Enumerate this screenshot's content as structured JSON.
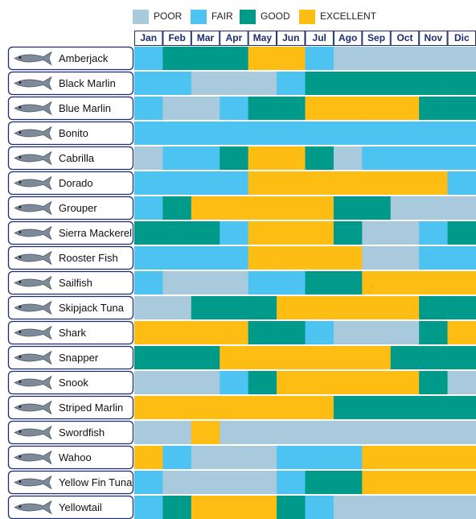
{
  "legend": [
    {
      "label": "POOR",
      "color": "#a9c9dc"
    },
    {
      "label": "FAIR",
      "color": "#4cc3f1"
    },
    {
      "label": "GOOD",
      "color": "#009a8b"
    },
    {
      "label": "EXCELLENT",
      "color": "#fdbd13"
    }
  ],
  "months": [
    "Jan",
    "Feb",
    "Mar",
    "Apr",
    "May",
    "Jun",
    "Jul",
    "Ago",
    "Sep",
    "Oct",
    "Nov",
    "Dic"
  ],
  "fish": [
    {
      "name": "Amberjack",
      "ratings": [
        1,
        2,
        2,
        2,
        3,
        3,
        1,
        0,
        0,
        0,
        0,
        0
      ]
    },
    {
      "name": "Black Marlin",
      "ratings": [
        1,
        1,
        0,
        0,
        0,
        1,
        2,
        2,
        2,
        2,
        2,
        2
      ]
    },
    {
      "name": "Blue Marlin",
      "ratings": [
        1,
        0,
        0,
        1,
        2,
        2,
        3,
        3,
        3,
        3,
        2,
        2
      ]
    },
    {
      "name": "Bonito",
      "ratings": [
        1,
        1,
        1,
        1,
        1,
        1,
        1,
        1,
        1,
        1,
        1,
        1
      ]
    },
    {
      "name": "Cabrilla",
      "ratings": [
        0,
        1,
        1,
        2,
        3,
        3,
        2,
        0,
        1,
        1,
        1,
        1
      ]
    },
    {
      "name": "Dorado",
      "ratings": [
        1,
        1,
        1,
        1,
        3,
        3,
        3,
        3,
        3,
        3,
        3,
        1
      ]
    },
    {
      "name": "Grouper",
      "ratings": [
        1,
        2,
        3,
        3,
        3,
        3,
        3,
        2,
        2,
        0,
        0,
        0
      ]
    },
    {
      "name": "Sierra Mackerel",
      "ratings": [
        2,
        2,
        2,
        1,
        3,
        3,
        3,
        2,
        0,
        0,
        1,
        2
      ]
    },
    {
      "name": "Rooster Fish",
      "ratings": [
        1,
        1,
        1,
        1,
        3,
        3,
        3,
        3,
        0,
        0,
        1,
        1
      ]
    },
    {
      "name": "Sailfish",
      "ratings": [
        1,
        0,
        0,
        0,
        1,
        1,
        2,
        2,
        3,
        3,
        3,
        3
      ]
    },
    {
      "name": "Skipjack Tuna",
      "ratings": [
        0,
        0,
        2,
        2,
        2,
        3,
        3,
        3,
        3,
        3,
        2,
        2
      ]
    },
    {
      "name": "Shark",
      "ratings": [
        3,
        3,
        3,
        3,
        2,
        2,
        1,
        0,
        0,
        0,
        2,
        3
      ]
    },
    {
      "name": "Snapper",
      "ratings": [
        2,
        2,
        2,
        3,
        3,
        3,
        3,
        3,
        3,
        2,
        2,
        2
      ]
    },
    {
      "name": "Snook",
      "ratings": [
        0,
        0,
        0,
        1,
        2,
        3,
        3,
        3,
        3,
        3,
        2,
        0
      ]
    },
    {
      "name": "Striped Marlin",
      "ratings": [
        3,
        3,
        3,
        3,
        3,
        3,
        3,
        2,
        2,
        2,
        2,
        2
      ]
    },
    {
      "name": "Swordfish",
      "ratings": [
        0,
        0,
        3,
        0,
        0,
        0,
        0,
        0,
        0,
        0,
        0,
        0
      ]
    },
    {
      "name": "Wahoo",
      "ratings": [
        3,
        1,
        0,
        0,
        0,
        1,
        1,
        1,
        3,
        3,
        3,
        3
      ]
    },
    {
      "name": "Yellow Fin Tuna",
      "ratings": [
        1,
        0,
        0,
        0,
        0,
        1,
        2,
        2,
        3,
        3,
        3,
        3
      ]
    },
    {
      "name": "Yellowtail",
      "ratings": [
        1,
        2,
        3,
        3,
        3,
        2,
        1,
        0,
        0,
        0,
        0,
        0
      ]
    }
  ]
}
